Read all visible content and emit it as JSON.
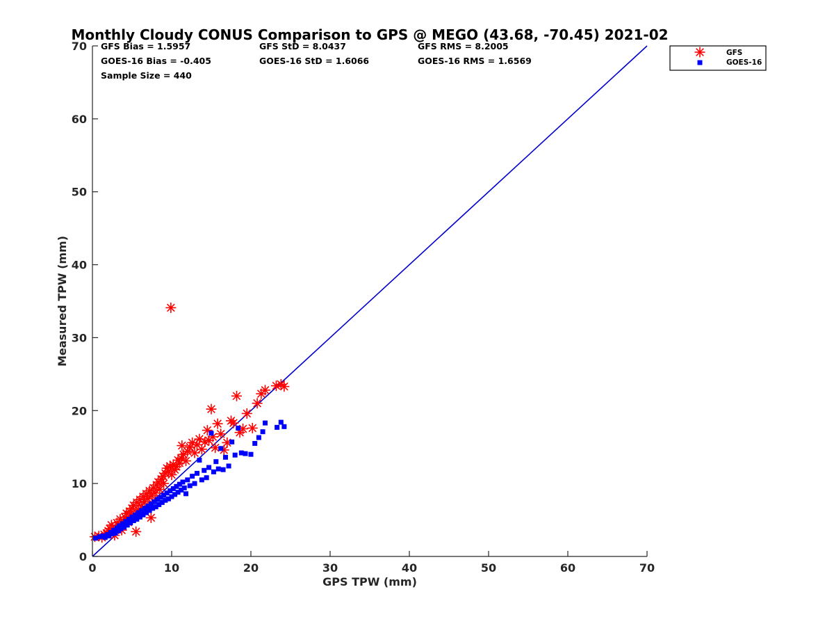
{
  "colors": {
    "gfs": "#ff0000",
    "goes": "#0000ff",
    "axis": "#262626",
    "line": "#0000cc"
  },
  "chart_data": {
    "type": "scatter",
    "title": "Monthly Cloudy CONUS Comparison to GPS @ MEGO (43.68, -70.45) 2021-02",
    "xlabel": "GPS TPW (mm)",
    "ylabel": "Measured TPW (mm)",
    "xlim": [
      0,
      70
    ],
    "ylim": [
      0,
      70
    ],
    "xticks": [
      "0",
      "10",
      "20",
      "30",
      "40",
      "50",
      "60",
      "70"
    ],
    "yticks": [
      "0",
      "10",
      "20",
      "30",
      "40",
      "50",
      "60",
      "70"
    ],
    "grid": false,
    "legend_position": "top-right",
    "stats": [
      "GFS Bias = 1.5957",
      "GFS StD = 8.0437",
      "GFS RMS = 8.2005",
      "GOES-16 Bias = -0.405",
      "GOES-16 StD = 1.6066",
      "GOES-16 RMS = 1.6569",
      "Sample Size = 440"
    ],
    "reference_line": {
      "x": [
        0,
        70
      ],
      "y": [
        0,
        70
      ]
    },
    "series": [
      {
        "name": "GFS",
        "marker": "asterisk",
        "points": [
          [
            0.3,
            2.7
          ],
          [
            0.8,
            2.8
          ],
          [
            1.2,
            2.6
          ],
          [
            1.5,
            3.0
          ],
          [
            1.8,
            3.2
          ],
          [
            2.0,
            3.5
          ],
          [
            2.2,
            3.8
          ],
          [
            2.4,
            4.3
          ],
          [
            2.6,
            3.4
          ],
          [
            2.8,
            2.9
          ],
          [
            3.0,
            3.9
          ],
          [
            3.1,
            4.6
          ],
          [
            3.3,
            4.2
          ],
          [
            3.5,
            5.1
          ],
          [
            3.7,
            3.6
          ],
          [
            3.9,
            4.8
          ],
          [
            4.1,
            5.4
          ],
          [
            4.3,
            5.9
          ],
          [
            4.5,
            4.7
          ],
          [
            4.7,
            6.2
          ],
          [
            4.9,
            5.5
          ],
          [
            5.0,
            6.6
          ],
          [
            5.2,
            7.0
          ],
          [
            5.4,
            5.8
          ],
          [
            5.5,
            3.4
          ],
          [
            5.6,
            7.4
          ],
          [
            5.8,
            6.4
          ],
          [
            6.0,
            7.8
          ],
          [
            6.2,
            6.9
          ],
          [
            6.4,
            8.2
          ],
          [
            6.6,
            7.5
          ],
          [
            6.8,
            8.6
          ],
          [
            7.0,
            7.9
          ],
          [
            7.2,
            9.0
          ],
          [
            7.4,
            5.3
          ],
          [
            7.5,
            8.3
          ],
          [
            7.7,
            9.4
          ],
          [
            7.9,
            8.7
          ],
          [
            8.1,
            9.8
          ],
          [
            8.3,
            10.2
          ],
          [
            8.5,
            9.2
          ],
          [
            8.7,
            10.6
          ],
          [
            8.9,
            11.0
          ],
          [
            9.0,
            10.0
          ],
          [
            9.2,
            11.4
          ],
          [
            9.4,
            12.1
          ],
          [
            9.6,
            11.7
          ],
          [
            9.8,
            12.4
          ],
          [
            9.9,
            34.1
          ],
          [
            10.0,
            11.2
          ],
          [
            10.2,
            12.6
          ],
          [
            10.4,
            11.9
          ],
          [
            10.6,
            12.3
          ],
          [
            10.8,
            13.2
          ],
          [
            11.0,
            12.8
          ],
          [
            11.2,
            13.5
          ],
          [
            11.3,
            15.2
          ],
          [
            11.5,
            14.0
          ],
          [
            11.8,
            13.1
          ],
          [
            12.0,
            14.4
          ],
          [
            12.3,
            15.0
          ],
          [
            12.6,
            15.6
          ],
          [
            12.9,
            14.2
          ],
          [
            13.2,
            15.3
          ],
          [
            13.5,
            16.1
          ],
          [
            13.8,
            14.7
          ],
          [
            14.2,
            15.7
          ],
          [
            14.5,
            17.3
          ],
          [
            14.7,
            15.9
          ],
          [
            15.0,
            20.2
          ],
          [
            15.2,
            16.4
          ],
          [
            15.5,
            14.9
          ],
          [
            15.8,
            18.2
          ],
          [
            16.2,
            16.8
          ],
          [
            16.6,
            14.6
          ],
          [
            17.0,
            15.6
          ],
          [
            17.5,
            18.6
          ],
          [
            17.8,
            18.3
          ],
          [
            18.2,
            22.0
          ],
          [
            18.6,
            17.0
          ],
          [
            19.0,
            17.5
          ],
          [
            19.5,
            19.6
          ],
          [
            20.2,
            17.6
          ],
          [
            20.8,
            21.0
          ],
          [
            21.3,
            22.3
          ],
          [
            21.8,
            22.8
          ],
          [
            23.2,
            23.4
          ],
          [
            23.8,
            23.6
          ],
          [
            24.2,
            23.3
          ]
        ]
      },
      {
        "name": "GOES-16",
        "marker": "square",
        "points": [
          [
            0.4,
            2.5
          ],
          [
            0.9,
            2.7
          ],
          [
            1.3,
            2.8
          ],
          [
            1.6,
            2.6
          ],
          [
            1.9,
            3.0
          ],
          [
            2.1,
            2.8
          ],
          [
            2.3,
            3.3
          ],
          [
            2.5,
            3.1
          ],
          [
            2.7,
            3.6
          ],
          [
            2.9,
            3.2
          ],
          [
            3.1,
            3.9
          ],
          [
            3.3,
            3.5
          ],
          [
            3.4,
            4.2
          ],
          [
            3.6,
            3.8
          ],
          [
            3.8,
            4.5
          ],
          [
            4.0,
            4.0
          ],
          [
            4.2,
            4.8
          ],
          [
            4.4,
            4.3
          ],
          [
            4.6,
            5.1
          ],
          [
            4.8,
            4.6
          ],
          [
            5.0,
            5.4
          ],
          [
            5.2,
            4.9
          ],
          [
            5.4,
            5.7
          ],
          [
            5.6,
            5.1
          ],
          [
            5.8,
            6.0
          ],
          [
            6.0,
            5.4
          ],
          [
            6.2,
            6.3
          ],
          [
            6.4,
            5.7
          ],
          [
            6.6,
            6.6
          ],
          [
            6.8,
            6.0
          ],
          [
            7.0,
            6.9
          ],
          [
            7.2,
            6.3
          ],
          [
            7.4,
            7.2
          ],
          [
            7.6,
            6.6
          ],
          [
            7.8,
            7.5
          ],
          [
            8.0,
            6.8
          ],
          [
            8.2,
            7.8
          ],
          [
            8.4,
            7.1
          ],
          [
            8.6,
            8.1
          ],
          [
            8.8,
            7.4
          ],
          [
            9.0,
            8.4
          ],
          [
            9.2,
            7.7
          ],
          [
            9.4,
            8.7
          ],
          [
            9.6,
            7.9
          ],
          [
            9.8,
            9.0
          ],
          [
            10.0,
            8.2
          ],
          [
            10.2,
            9.3
          ],
          [
            10.4,
            8.5
          ],
          [
            10.6,
            9.6
          ],
          [
            10.8,
            8.8
          ],
          [
            11.0,
            9.9
          ],
          [
            11.2,
            9.1
          ],
          [
            11.4,
            10.2
          ],
          [
            11.6,
            9.4
          ],
          [
            11.8,
            8.6
          ],
          [
            12.0,
            10.5
          ],
          [
            12.3,
            9.7
          ],
          [
            12.6,
            11.0
          ],
          [
            12.9,
            10.0
          ],
          [
            13.2,
            11.4
          ],
          [
            13.5,
            13.2
          ],
          [
            13.8,
            10.5
          ],
          [
            14.1,
            11.8
          ],
          [
            14.4,
            10.8
          ],
          [
            14.7,
            12.2
          ],
          [
            15.0,
            16.9
          ],
          [
            15.3,
            11.6
          ],
          [
            15.6,
            13.0
          ],
          [
            15.9,
            12.0
          ],
          [
            16.2,
            14.8
          ],
          [
            16.5,
            11.9
          ],
          [
            16.8,
            13.6
          ],
          [
            17.2,
            12.4
          ],
          [
            17.6,
            15.7
          ],
          [
            18.0,
            13.9
          ],
          [
            18.4,
            17.6
          ],
          [
            18.8,
            14.2
          ],
          [
            19.3,
            14.1
          ],
          [
            20.0,
            14.0
          ],
          [
            20.5,
            15.5
          ],
          [
            21.0,
            16.3
          ],
          [
            21.5,
            17.1
          ],
          [
            21.8,
            18.3
          ],
          [
            23.3,
            17.7
          ],
          [
            23.8,
            18.4
          ],
          [
            24.2,
            17.8
          ]
        ]
      }
    ]
  }
}
